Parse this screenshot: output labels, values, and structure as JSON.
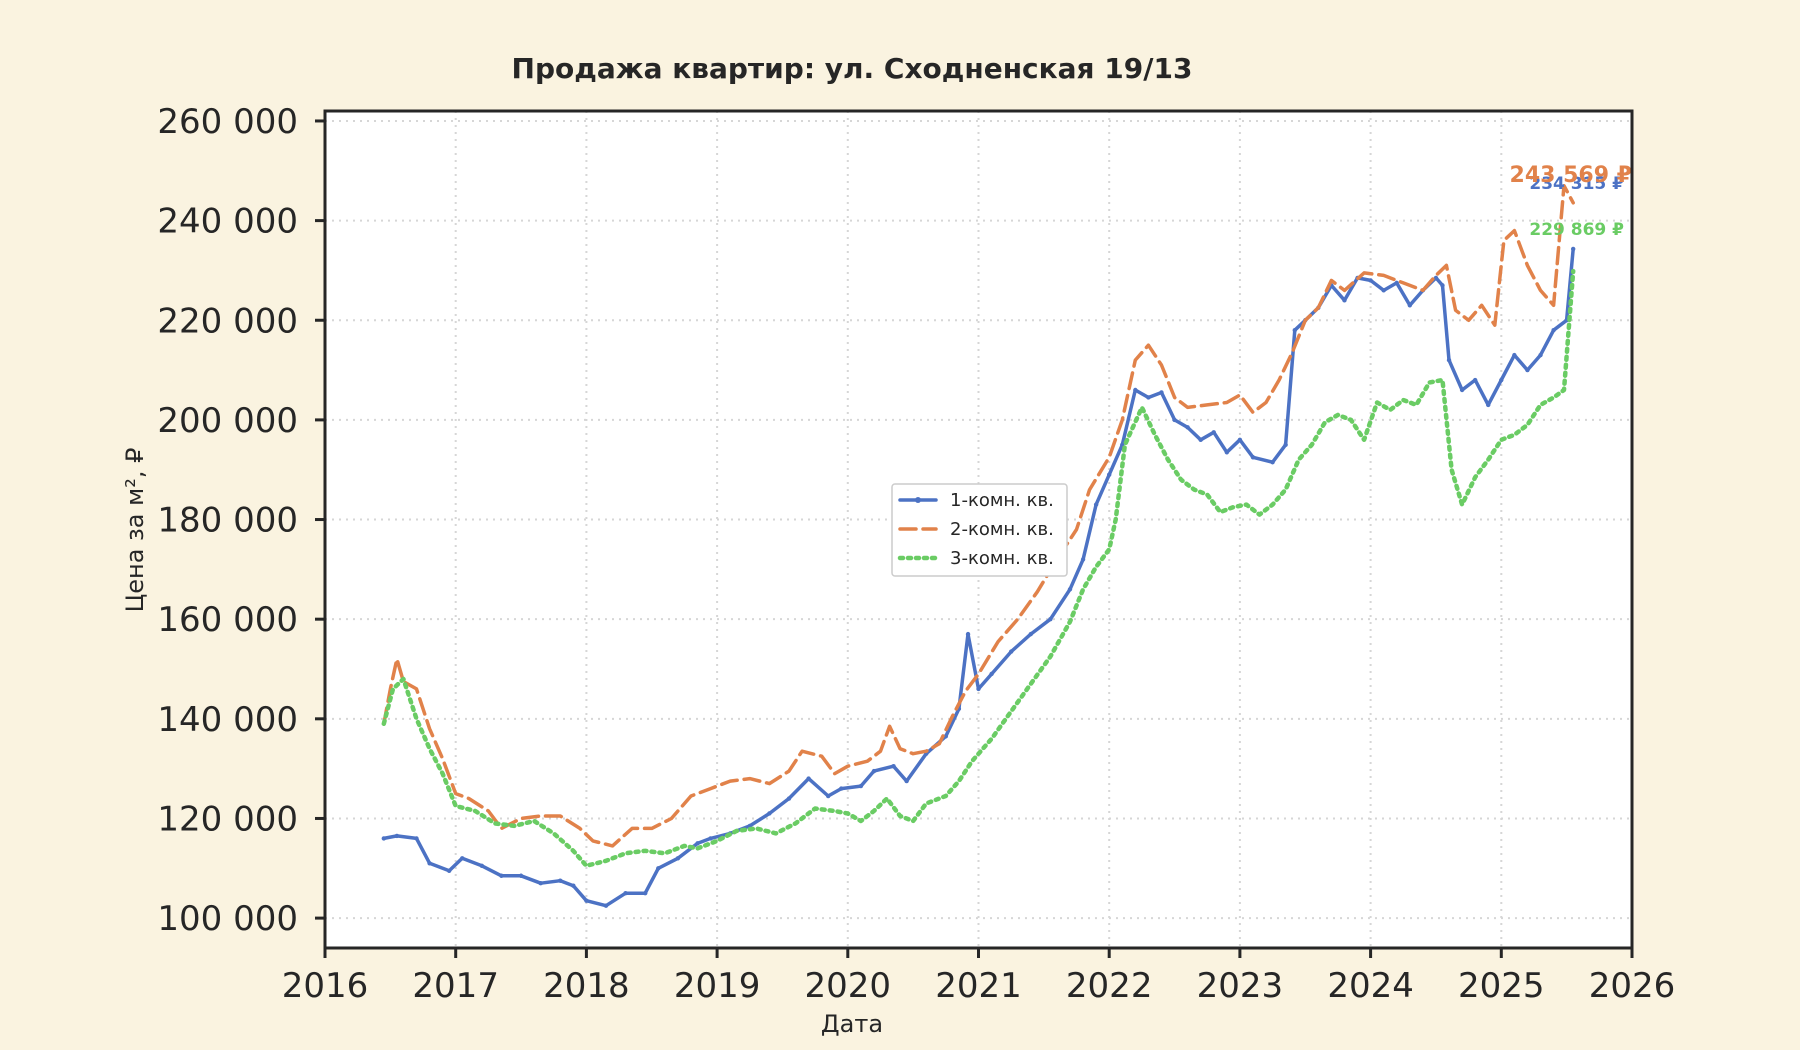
{
  "chart_data": {
    "type": "line",
    "title": "Продажа квартир: ул. Сходненская 19/13",
    "xlabel": "Дата",
    "ylabel": "Цена за м², ₽",
    "xlim": [
      2016,
      2026
    ],
    "ylim": [
      94000,
      262000
    ],
    "x_ticks": [
      2016,
      2017,
      2018,
      2019,
      2020,
      2021,
      2022,
      2023,
      2024,
      2025,
      2026
    ],
    "x_tick_labels": [
      "2016",
      "2017",
      "2018",
      "2019",
      "2020",
      "2021",
      "2022",
      "2023",
      "2024",
      "2025",
      "2026"
    ],
    "y_ticks": [
      100000,
      120000,
      140000,
      160000,
      180000,
      200000,
      220000,
      240000,
      260000
    ],
    "y_tick_labels": [
      "100 000",
      "120 000",
      "140 000",
      "160 000",
      "180 000",
      "200 000",
      "220 000",
      "240 000",
      "260 000"
    ],
    "grid": true,
    "legend_position": "center",
    "series": [
      {
        "name": "1-комн. кв.",
        "color": "#4c72c4",
        "line_style": "solid",
        "end_label": "234 315 ₽",
        "points": [
          [
            2016.45,
            116000
          ],
          [
            2016.55,
            116500
          ],
          [
            2016.7,
            116000
          ],
          [
            2016.8,
            111000
          ],
          [
            2016.95,
            109500
          ],
          [
            2017.05,
            112000
          ],
          [
            2017.2,
            110500
          ],
          [
            2017.35,
            108500
          ],
          [
            2017.5,
            108500
          ],
          [
            2017.65,
            107000
          ],
          [
            2017.8,
            107500
          ],
          [
            2017.9,
            106500
          ],
          [
            2018.0,
            103500
          ],
          [
            2018.15,
            102500
          ],
          [
            2018.3,
            105000
          ],
          [
            2018.45,
            105000
          ],
          [
            2018.55,
            110000
          ],
          [
            2018.7,
            112000
          ],
          [
            2018.85,
            115000
          ],
          [
            2018.95,
            116000
          ],
          [
            2019.1,
            117000
          ],
          [
            2019.25,
            118500
          ],
          [
            2019.4,
            121000
          ],
          [
            2019.55,
            124000
          ],
          [
            2019.7,
            128000
          ],
          [
            2019.85,
            124500
          ],
          [
            2019.95,
            126000
          ],
          [
            2020.1,
            126500
          ],
          [
            2020.2,
            129500
          ],
          [
            2020.35,
            130500
          ],
          [
            2020.45,
            127500
          ],
          [
            2020.6,
            133000
          ],
          [
            2020.75,
            136500
          ],
          [
            2020.85,
            142000
          ],
          [
            2020.92,
            157000
          ],
          [
            2021.0,
            146000
          ],
          [
            2021.1,
            149000
          ],
          [
            2021.25,
            153500
          ],
          [
            2021.4,
            157000
          ],
          [
            2021.55,
            160000
          ],
          [
            2021.7,
            166000
          ],
          [
            2021.8,
            172000
          ],
          [
            2021.9,
            183000
          ],
          [
            2022.0,
            189000
          ],
          [
            2022.1,
            195000
          ],
          [
            2022.2,
            206000
          ],
          [
            2022.3,
            204500
          ],
          [
            2022.4,
            205500
          ],
          [
            2022.5,
            200000
          ],
          [
            2022.6,
            198500
          ],
          [
            2022.7,
            196000
          ],
          [
            2022.8,
            197500
          ],
          [
            2022.9,
            193500
          ],
          [
            2023.0,
            196000
          ],
          [
            2023.1,
            192500
          ],
          [
            2023.25,
            191500
          ],
          [
            2023.35,
            195000
          ],
          [
            2023.42,
            218000
          ],
          [
            2023.5,
            220000
          ],
          [
            2023.6,
            222500
          ],
          [
            2023.7,
            227000
          ],
          [
            2023.8,
            224000
          ],
          [
            2023.9,
            228500
          ],
          [
            2024.0,
            228000
          ],
          [
            2024.1,
            226000
          ],
          [
            2024.2,
            227500
          ],
          [
            2024.3,
            223000
          ],
          [
            2024.4,
            226000
          ],
          [
            2024.5,
            228500
          ],
          [
            2024.55,
            227000
          ],
          [
            2024.6,
            212000
          ],
          [
            2024.7,
            206000
          ],
          [
            2024.8,
            208000
          ],
          [
            2024.9,
            203000
          ],
          [
            2025.0,
            208000
          ],
          [
            2025.1,
            213000
          ],
          [
            2025.2,
            210000
          ],
          [
            2025.3,
            213000
          ],
          [
            2025.4,
            218000
          ],
          [
            2025.5,
            220000
          ],
          [
            2025.55,
            234315
          ]
        ]
      },
      {
        "name": "2-комн. кв.",
        "color": "#e1824a",
        "line_style": "dashed",
        "end_label": "243 569 ₽",
        "points": [
          [
            2016.45,
            139000
          ],
          [
            2016.5,
            146000
          ],
          [
            2016.55,
            152000
          ],
          [
            2016.6,
            147500
          ],
          [
            2016.7,
            146000
          ],
          [
            2016.8,
            138000
          ],
          [
            2016.9,
            132000
          ],
          [
            2017.0,
            125000
          ],
          [
            2017.1,
            124000
          ],
          [
            2017.25,
            121500
          ],
          [
            2017.35,
            118000
          ],
          [
            2017.5,
            120000
          ],
          [
            2017.65,
            120500
          ],
          [
            2017.8,
            120500
          ],
          [
            2017.95,
            118000
          ],
          [
            2018.05,
            115500
          ],
          [
            2018.2,
            114500
          ],
          [
            2018.35,
            118000
          ],
          [
            2018.5,
            118000
          ],
          [
            2018.65,
            120000
          ],
          [
            2018.8,
            124500
          ],
          [
            2018.95,
            126000
          ],
          [
            2019.1,
            127500
          ],
          [
            2019.25,
            128000
          ],
          [
            2019.4,
            127000
          ],
          [
            2019.55,
            129500
          ],
          [
            2019.65,
            133500
          ],
          [
            2019.8,
            132500
          ],
          [
            2019.9,
            129000
          ],
          [
            2020.0,
            130500
          ],
          [
            2020.15,
            131500
          ],
          [
            2020.25,
            133500
          ],
          [
            2020.32,
            138500
          ],
          [
            2020.4,
            134000
          ],
          [
            2020.5,
            133000
          ],
          [
            2020.6,
            133500
          ],
          [
            2020.7,
            135000
          ],
          [
            2020.8,
            140500
          ],
          [
            2020.9,
            145500
          ],
          [
            2021.0,
            149000
          ],
          [
            2021.15,
            155500
          ],
          [
            2021.3,
            160000
          ],
          [
            2021.45,
            165500
          ],
          [
            2021.6,
            172000
          ],
          [
            2021.75,
            178000
          ],
          [
            2021.85,
            186000
          ],
          [
            2022.0,
            192500
          ],
          [
            2022.1,
            200000
          ],
          [
            2022.2,
            212000
          ],
          [
            2022.3,
            215000
          ],
          [
            2022.4,
            211000
          ],
          [
            2022.5,
            204500
          ],
          [
            2022.6,
            202500
          ],
          [
            2022.75,
            203000
          ],
          [
            2022.9,
            203500
          ],
          [
            2023.0,
            205000
          ],
          [
            2023.1,
            201500
          ],
          [
            2023.2,
            203500
          ],
          [
            2023.3,
            208000
          ],
          [
            2023.4,
            213500
          ],
          [
            2023.5,
            220000
          ],
          [
            2023.6,
            222500
          ],
          [
            2023.7,
            228000
          ],
          [
            2023.8,
            226000
          ],
          [
            2023.95,
            229500
          ],
          [
            2024.1,
            229000
          ],
          [
            2024.25,
            227500
          ],
          [
            2024.4,
            226000
          ],
          [
            2024.5,
            229000
          ],
          [
            2024.58,
            231000
          ],
          [
            2024.65,
            222000
          ],
          [
            2024.75,
            220000
          ],
          [
            2024.85,
            223000
          ],
          [
            2024.95,
            219000
          ],
          [
            2025.02,
            236000
          ],
          [
            2025.1,
            238000
          ],
          [
            2025.2,
            231000
          ],
          [
            2025.3,
            226000
          ],
          [
            2025.4,
            223000
          ],
          [
            2025.48,
            247000
          ],
          [
            2025.55,
            243569
          ]
        ]
      },
      {
        "name": "3-комн. кв.",
        "color": "#6acc64",
        "line_style": "dotted",
        "end_label": "229 869 ₽",
        "points": [
          [
            2016.45,
            139000
          ],
          [
            2016.52,
            146000
          ],
          [
            2016.6,
            148000
          ],
          [
            2016.7,
            140000
          ],
          [
            2016.8,
            134000
          ],
          [
            2016.9,
            129000
          ],
          [
            2017.0,
            122500
          ],
          [
            2017.15,
            121500
          ],
          [
            2017.3,
            119000
          ],
          [
            2017.45,
            118500
          ],
          [
            2017.6,
            119500
          ],
          [
            2017.75,
            117000
          ],
          [
            2017.9,
            113500
          ],
          [
            2018.0,
            110500
          ],
          [
            2018.15,
            111500
          ],
          [
            2018.3,
            113000
          ],
          [
            2018.45,
            113500
          ],
          [
            2018.6,
            113000
          ],
          [
            2018.75,
            114500
          ],
          [
            2018.85,
            114000
          ],
          [
            2019.0,
            115500
          ],
          [
            2019.15,
            117500
          ],
          [
            2019.3,
            118000
          ],
          [
            2019.45,
            117000
          ],
          [
            2019.6,
            119000
          ],
          [
            2019.75,
            122000
          ],
          [
            2019.9,
            121500
          ],
          [
            2020.0,
            121000
          ],
          [
            2020.1,
            119500
          ],
          [
            2020.2,
            121500
          ],
          [
            2020.3,
            124000
          ],
          [
            2020.4,
            120500
          ],
          [
            2020.5,
            119500
          ],
          [
            2020.6,
            123000
          ],
          [
            2020.75,
            124500
          ],
          [
            2020.85,
            127500
          ],
          [
            2020.95,
            131500
          ],
          [
            2021.1,
            136000
          ],
          [
            2021.25,
            141500
          ],
          [
            2021.4,
            147000
          ],
          [
            2021.55,
            152500
          ],
          [
            2021.7,
            159500
          ],
          [
            2021.8,
            166000
          ],
          [
            2021.9,
            170500
          ],
          [
            2022.0,
            174000
          ],
          [
            2022.05,
            180000
          ],
          [
            2022.12,
            195000
          ],
          [
            2022.25,
            202500
          ],
          [
            2022.35,
            197000
          ],
          [
            2022.45,
            192000
          ],
          [
            2022.55,
            188000
          ],
          [
            2022.65,
            186000
          ],
          [
            2022.75,
            185000
          ],
          [
            2022.85,
            181500
          ],
          [
            2022.95,
            182500
          ],
          [
            2023.05,
            183000
          ],
          [
            2023.15,
            181000
          ],
          [
            2023.25,
            183000
          ],
          [
            2023.35,
            186000
          ],
          [
            2023.45,
            192000
          ],
          [
            2023.55,
            195000
          ],
          [
            2023.65,
            199500
          ],
          [
            2023.75,
            201000
          ],
          [
            2023.85,
            200000
          ],
          [
            2023.95,
            196000
          ],
          [
            2024.05,
            203500
          ],
          [
            2024.15,
            202000
          ],
          [
            2024.25,
            204000
          ],
          [
            2024.35,
            203000
          ],
          [
            2024.45,
            207500
          ],
          [
            2024.55,
            208000
          ],
          [
            2024.62,
            190000
          ],
          [
            2024.7,
            183000
          ],
          [
            2024.8,
            188500
          ],
          [
            2024.9,
            192000
          ],
          [
            2025.0,
            196000
          ],
          [
            2025.1,
            197000
          ],
          [
            2025.2,
            199000
          ],
          [
            2025.3,
            203000
          ],
          [
            2025.4,
            204500
          ],
          [
            2025.48,
            206000
          ],
          [
            2025.55,
            229869
          ]
        ]
      }
    ]
  }
}
